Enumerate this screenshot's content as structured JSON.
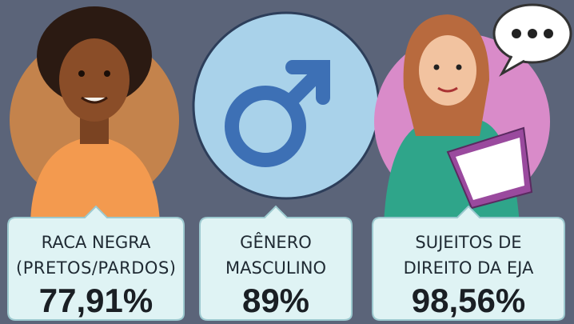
{
  "cards": [
    {
      "label_lines": [
        "RACA NEGRA",
        "(PRETOS/PARDOS)"
      ],
      "value": "77,91%"
    },
    {
      "label_lines": [
        "GÊNERO",
        "MASCULINO"
      ],
      "value": "89%"
    },
    {
      "label_lines": [
        "SUJEITOS DE",
        "DIREITO DA EJA"
      ],
      "value": "98,56%"
    }
  ]
}
